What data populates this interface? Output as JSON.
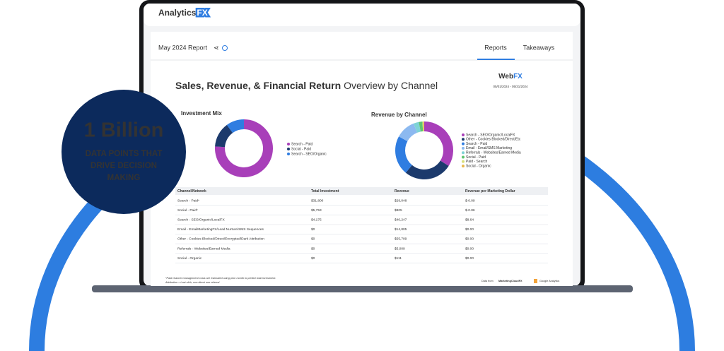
{
  "badge": {
    "headline": "1 Billion",
    "lines": [
      "DATA POINTS THAT",
      "DRIVE DECISION",
      "MAKING"
    ]
  },
  "app": {
    "brand": "Analytics",
    "brand_fx": "FX"
  },
  "report": {
    "title": "May 2024 Report",
    "tabs": [
      "Reports",
      "Takeaways"
    ],
    "logo": "Web",
    "logo_fx": "FX",
    "date": "05/01/2024 - 05/31/2024",
    "heading_bold": "Sales, Revenue, & Financial Return",
    "heading_rest": "Overview by Channel"
  },
  "chart_data": [
    {
      "type": "pie",
      "title": "Investment Mix",
      "categories": [
        "Search - Paid",
        "Social - Paid",
        "Search - SEO/Organic"
      ],
      "values": [
        76,
        14,
        10
      ],
      "colors": [
        "#a83fb9",
        "#1c3a6c",
        "#2f7de1"
      ]
    },
    {
      "type": "pie",
      "title": "Revenue by Channel",
      "categories": [
        "Search - SEO/Organic/LocalFX",
        "Other - Cookies Blocked/Direct/Etc",
        "Search - Paid",
        "Email - Email/SMS Marketing",
        "Referrals - Websites/Earned Media",
        "Social - Paid",
        "Paid - Search",
        "Social - Organic"
      ],
      "values": [
        34,
        27,
        22,
        11,
        3,
        2,
        0.5,
        0.5
      ],
      "colors": [
        "#a83fb9",
        "#1c3a6c",
        "#2f7de1",
        "#8cb9f0",
        "#7fd3d6",
        "#5fc46f",
        "#d9e07a",
        "#e8b84a"
      ]
    }
  ],
  "table": {
    "headers": [
      "Channel/Network",
      "Total Investment",
      "Revenue",
      "Revenue per Marketing Dollar"
    ],
    "rows": [
      [
        "Search - Paid*",
        "$31,800",
        "$29,048",
        "$-0.09"
      ],
      [
        "Social - Paid*",
        "$5,753",
        "$805",
        "$-0.86"
      ],
      [
        "Search - SEO/Organic/LocalFX",
        "$4,175",
        "$40,247",
        "$8.64"
      ],
      [
        "Email - EmailMarketingFX/Lead Nurture/SMS Sequences",
        "$0",
        "$14,805",
        "$0.00"
      ],
      [
        "Other - Cookies Blocked/Direct/Encrypted/Dark Attribution",
        "$0",
        "$55,709",
        "$0.00"
      ],
      [
        "Referrals - Websites/Earned Media",
        "$0",
        "$5,009",
        "$0.00"
      ],
      [
        "Social - Organic",
        "$0",
        "$111",
        "$0.00"
      ]
    ]
  },
  "footer": {
    "notes": [
      "*Paid channel management costs are estimated using prior month to predict total investment.",
      "Attribution = Last click, non direct non referral"
    ],
    "data_from": "Data from",
    "sources": [
      "MarketingCloudFX",
      "Google Analytics"
    ]
  }
}
